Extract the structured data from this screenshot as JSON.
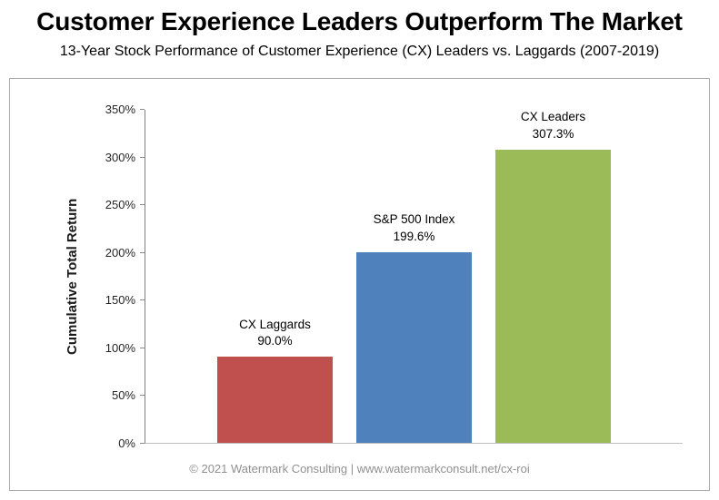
{
  "header": {
    "title": "Customer Experience Leaders Outperform The Market",
    "subtitle": "13-Year Stock Performance of Customer Experience (CX) Leaders vs. Laggards (2007-2019)"
  },
  "chart_data": {
    "type": "bar",
    "title": "Customer Experience Leaders Outperform The Market",
    "subtitle": "13-Year Stock Performance of Customer Experience (CX) Leaders vs. Laggards (2007-2019)",
    "categories": [
      "CX Laggards",
      "S&P 500 Index",
      "CX Leaders"
    ],
    "values": [
      90.0,
      199.6,
      307.3
    ],
    "value_labels": [
      "90.0%",
      "199.6%",
      "307.3%"
    ],
    "bar_colors": [
      "#C0504D",
      "#4F81BD",
      "#9BBB59"
    ],
    "xlabel": "",
    "ylabel": "Cumulative Total Return",
    "ylim": [
      0,
      350
    ],
    "ytick_step": 50,
    "yticks": [
      0,
      50,
      100,
      150,
      200,
      250,
      300,
      350
    ],
    "ytick_labels": [
      "0%",
      "50%",
      "100%",
      "150%",
      "200%",
      "250%",
      "300%",
      "350%"
    ],
    "grid": false,
    "legend": "none"
  },
  "footer": {
    "credit": "© 2021 Watermark Consulting | www.watermarkconsult.net/cx-roi"
  }
}
